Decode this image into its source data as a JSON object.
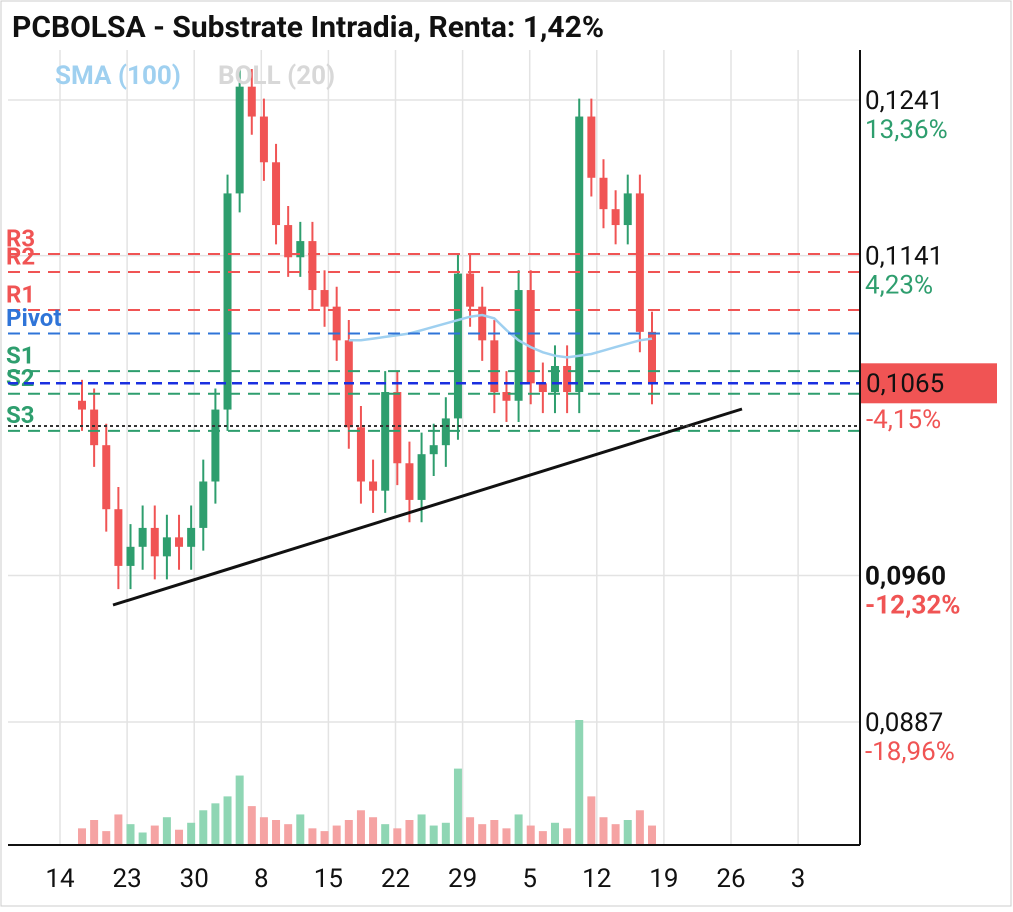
{
  "chart_data": {
    "type": "candlestick",
    "title": "PCBOLSA - Substrate Intradia, Renta: 1,42%",
    "indicators": [
      {
        "name": "SMA (100)",
        "color": "#9fd0f0"
      },
      {
        "name": "BOLL (20)",
        "color": "#d8d8d8"
      }
    ],
    "categories": [
      "14",
      "23",
      "30",
      "8",
      "15",
      "22",
      "29",
      "5",
      "12",
      "19",
      "26",
      "3"
    ],
    "log_scale": true,
    "grid": true,
    "ylim": [
      0.083,
      0.1275
    ],
    "yticks": [
      {
        "value": 0.1241,
        "label": "0,1241"
      },
      {
        "value": 0.1141,
        "label": "0,1141"
      },
      {
        "value": 0.096,
        "label": "0,0960"
      },
      {
        "value": 0.0887,
        "label": "0,0887"
      }
    ],
    "ytick_changes": [
      "13,36%",
      "4,23%",
      "-12,32%",
      "-18,96%"
    ],
    "up_color": "#2e9e6e",
    "down_color": "#f05454",
    "open": [
      0.1055,
      0.105,
      0.103,
      0.0995,
      0.0965,
      0.0975,
      0.0985,
      0.097,
      0.098,
      0.0975,
      0.0985,
      0.101,
      0.105,
      0.118,
      0.125,
      0.123,
      0.12,
      0.116,
      0.114,
      0.115,
      0.112,
      0.111,
      0.109,
      0.104,
      0.101,
      0.1005,
      0.106,
      0.102,
      0.1,
      0.1025,
      0.103,
      0.1045,
      0.113,
      0.111,
      0.109,
      0.106,
      0.1055,
      0.112,
      0.1065,
      0.106,
      0.1075,
      0.106,
      0.123,
      0.119,
      0.117,
      0.116,
      0.118,
      0.1095
    ],
    "high": [
      0.1067,
      0.1062,
      0.1042,
      0.1007,
      0.0987,
      0.0997,
      0.0997,
      0.0992,
      0.0992,
      0.0997,
      0.1022,
      0.1062,
      0.1192,
      0.1262,
      0.1262,
      0.1242,
      0.1212,
      0.1172,
      0.1162,
      0.1162,
      0.1132,
      0.1122,
      0.1102,
      0.1052,
      0.1022,
      0.1072,
      0.1072,
      0.1032,
      0.1037,
      0.1042,
      0.1057,
      0.1142,
      0.1142,
      0.1122,
      0.1102,
      0.1072,
      0.1132,
      0.1132,
      0.1077,
      0.1087,
      0.1087,
      0.1242,
      0.1242,
      0.1202,
      0.1182,
      0.1192,
      0.1192,
      0.1107
    ],
    "low": [
      0.1038,
      0.1018,
      0.0983,
      0.0953,
      0.0953,
      0.0963,
      0.0958,
      0.0958,
      0.0963,
      0.0963,
      0.0973,
      0.0998,
      0.1038,
      0.1168,
      0.1218,
      0.1188,
      0.1148,
      0.1128,
      0.1128,
      0.1108,
      0.1098,
      0.1078,
      0.1028,
      0.0998,
      0.0993,
      0.0993,
      0.1008,
      0.0988,
      0.0988,
      0.1013,
      0.1018,
      0.1033,
      0.1098,
      0.1078,
      0.1048,
      0.1043,
      0.1043,
      0.1053,
      0.1048,
      0.1048,
      0.1048,
      0.1048,
      0.1178,
      0.1158,
      0.1148,
      0.1148,
      0.1083,
      0.1053
    ],
    "close": [
      0.105,
      0.103,
      0.0995,
      0.0965,
      0.0975,
      0.0985,
      0.097,
      0.098,
      0.0975,
      0.0985,
      0.101,
      0.105,
      0.118,
      0.125,
      0.123,
      0.12,
      0.116,
      0.114,
      0.115,
      0.112,
      0.111,
      0.109,
      0.104,
      0.101,
      0.1005,
      0.106,
      0.102,
      0.1,
      0.1025,
      0.103,
      0.1045,
      0.113,
      0.111,
      0.109,
      0.106,
      0.1055,
      0.112,
      0.1065,
      0.106,
      0.1075,
      0.106,
      0.123,
      0.119,
      0.117,
      0.116,
      0.118,
      0.1095,
      0.1065
    ],
    "volume": [
      12,
      18,
      10,
      22,
      15,
      9,
      14,
      20,
      11,
      16,
      25,
      30,
      35,
      50,
      28,
      20,
      18,
      15,
      22,
      12,
      10,
      14,
      18,
      25,
      20,
      15,
      12,
      18,
      22,
      14,
      16,
      55,
      20,
      15,
      18,
      12,
      22,
      14,
      10,
      16,
      12,
      90,
      35,
      20,
      15,
      18,
      25,
      14
    ],
    "sma": [
      null,
      null,
      null,
      null,
      null,
      null,
      null,
      null,
      null,
      null,
      null,
      null,
      null,
      null,
      null,
      null,
      null,
      null,
      null,
      null,
      null,
      null,
      0.109,
      0.109,
      0.1091,
      0.1092,
      0.1093,
      0.1094,
      0.1096,
      0.1098,
      0.11,
      0.1102,
      0.1104,
      0.1105,
      0.1103,
      0.1096,
      0.109,
      0.1086,
      0.1083,
      0.1081,
      0.108,
      0.1081,
      0.1082,
      0.1084,
      0.1086,
      0.1088,
      0.109,
      0.1091
    ],
    "levels": [
      {
        "name": "R3",
        "value": 0.1142,
        "color": "#f05454"
      },
      {
        "name": "R2",
        "value": 0.1131,
        "color": "#f05454"
      },
      {
        "name": "R1",
        "value": 0.1108,
        "color": "#f05454"
      },
      {
        "name": "Pivot",
        "value": 0.1094,
        "color": "#2f74d8"
      },
      {
        "name": "S1",
        "value": 0.1072,
        "color": "#2e9e6e"
      },
      {
        "name": "S2",
        "value": 0.1059,
        "color": "#2e9e6e"
      },
      {
        "name": "S3",
        "value": 0.1038,
        "color": "#2e9e6e"
      }
    ],
    "last_price": {
      "value": 0.1065,
      "label": "0,1065",
      "change": "-4,15%",
      "color": "#f05454"
    }
  }
}
